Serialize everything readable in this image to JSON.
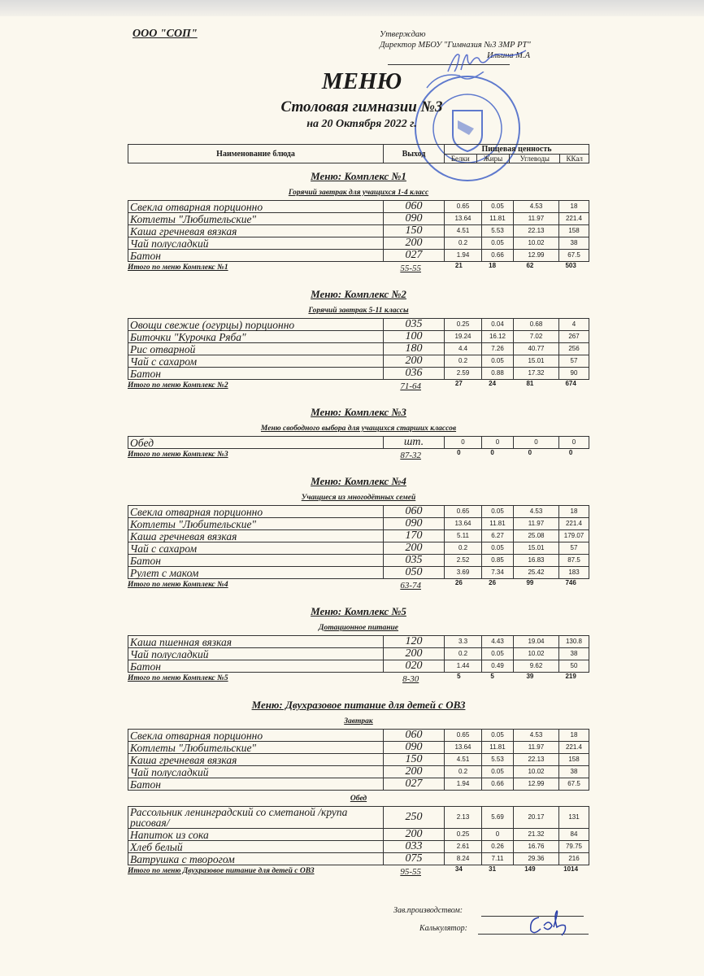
{
  "header": {
    "org": "ООО \"СОП\"",
    "approve_label": "Утверждаю",
    "director": "Директор МБОУ \"Гимназия №3 ЗМР РТ\"",
    "director_name": "Ильина М.А",
    "title": "МЕНЮ",
    "subtitle": "Столовая гимназии №3",
    "date": "на 20 Октября 2022 г."
  },
  "stamp": {
    "text": "МБОУ Гимназия №3 Зеленодольского муниципального района Республики Татарстан",
    "color": "#2a4fc2"
  },
  "columns": {
    "name": "Наименование блюда",
    "output": "Выход",
    "nutrition": "Пищевая ценность",
    "protein": "Белки",
    "fat": "Жиры",
    "carbs": "Углеводы",
    "kcal": "ККал"
  },
  "sections": [
    {
      "title": "Меню: Комплекс №1",
      "groups": [
        {
          "subtitle": "Горячий завтрак для учащихся 1-4 класс",
          "rows": [
            [
              "Свекла отварная порционно",
              "060",
              "0.65",
              "0.05",
              "4.53",
              "18"
            ],
            [
              "Котлеты  \"Любительские\"",
              "090",
              "13.64",
              "11.81",
              "11.97",
              "221.4"
            ],
            [
              "Каша гречневая вязкая",
              "150",
              "4.51",
              "5.53",
              "22.13",
              "158"
            ],
            [
              "Чай полусладкий",
              "200",
              "0.2",
              "0.05",
              "10.02",
              "38"
            ],
            [
              "Батон",
              "027",
              "1.94",
              "0.66",
              "12.99",
              "67.5"
            ]
          ]
        }
      ],
      "total": [
        "Итого по меню Комплекс №1",
        "55-55",
        "21",
        "18",
        "62",
        "503"
      ]
    },
    {
      "title": "Меню: Комплекс №2",
      "groups": [
        {
          "subtitle": "Горячий завтрак 5-11 классы",
          "rows": [
            [
              "Овощи свежие (огурцы) порционно",
              "035",
              "0.25",
              "0.04",
              "0.68",
              "4"
            ],
            [
              "Биточки \"Курочка Ряба\"",
              "100",
              "19.24",
              "16.12",
              "7.02",
              "267"
            ],
            [
              "Рис отварной",
              "180",
              "4.4",
              "7.26",
              "40.77",
              "256"
            ],
            [
              "Чай с сахаром",
              "200",
              "0.2",
              "0.05",
              "15.01",
              "57"
            ],
            [
              "Батон",
              "036",
              "2.59",
              "0.88",
              "17.32",
              "90"
            ]
          ]
        }
      ],
      "total": [
        "Итого по меню Комплекс №2",
        "71-64",
        "27",
        "24",
        "81",
        "674"
      ]
    },
    {
      "title": "Меню: Комплекс №3",
      "groups": [
        {
          "subtitle": "Меню свободного выбора для учащихся старших классов",
          "rows": [
            [
              "Обед",
              "шт.",
              "0",
              "0",
              "0",
              "0"
            ]
          ]
        }
      ],
      "total": [
        "Итого по меню Комплекс №3",
        "87-32",
        "0",
        "0",
        "0",
        "0"
      ]
    },
    {
      "title": "Меню: Комплекс №4",
      "groups": [
        {
          "subtitle": "Учащиеся из многодётных семей",
          "rows": [
            [
              "Свекла отварная порционно",
              "060",
              "0.65",
              "0.05",
              "4.53",
              "18"
            ],
            [
              "Котлеты  \"Любительские\"",
              "090",
              "13.64",
              "11.81",
              "11.97",
              "221.4"
            ],
            [
              "Каша гречневая вязкая",
              "170",
              "5.11",
              "6.27",
              "25.08",
              "179.07"
            ],
            [
              "Чай с сахаром",
              "200",
              "0.2",
              "0.05",
              "15.01",
              "57"
            ],
            [
              "Батон",
              "035",
              "2.52",
              "0.85",
              "16.83",
              "87.5"
            ],
            [
              "Рулет с маком",
              "050",
              "3.69",
              "7.34",
              "25.42",
              "183"
            ]
          ]
        }
      ],
      "total": [
        "Итого по меню Комплекс №4",
        "63-74",
        "26",
        "26",
        "99",
        "746"
      ]
    },
    {
      "title": "Меню: Комплекс №5",
      "groups": [
        {
          "subtitle": "Дотационное питание",
          "rows": [
            [
              "Каша пшенная вязкая",
              "120",
              "3.3",
              "4.43",
              "19.04",
              "130.8"
            ],
            [
              "Чай полусладкий",
              "200",
              "0.2",
              "0.05",
              "10.02",
              "38"
            ],
            [
              "Батон",
              "020",
              "1.44",
              "0.49",
              "9.62",
              "50"
            ]
          ]
        }
      ],
      "total": [
        "Итого по меню Комплекс №5",
        "8-30",
        "5",
        "5",
        "39",
        "219"
      ]
    },
    {
      "title": "Меню: Двухразовое питание для детей с ОВЗ",
      "groups": [
        {
          "subtitle": "Завтрак",
          "rows": [
            [
              "Свекла отварная порционно",
              "060",
              "0.65",
              "0.05",
              "4.53",
              "18"
            ],
            [
              "Котлеты  \"Любительские\"",
              "090",
              "13.64",
              "11.81",
              "11.97",
              "221.4"
            ],
            [
              "Каша гречневая вязкая",
              "150",
              "4.51",
              "5.53",
              "22.13",
              "158"
            ],
            [
              "Чай полусладкий",
              "200",
              "0.2",
              "0.05",
              "10.02",
              "38"
            ],
            [
              "Батон",
              "027",
              "1.94",
              "0.66",
              "12.99",
              "67.5"
            ]
          ]
        },
        {
          "subtitle": "Обед",
          "rows": [
            [
              "Рассольник ленинградский со сметаной /крупа рисовая/",
              "250",
              "2.13",
              "5.69",
              "20.17",
              "131"
            ],
            [
              "Напиток  из сока",
              "200",
              "0.25",
              "0",
              "21.32",
              "84"
            ],
            [
              "Хлеб  белый",
              "033",
              "2.61",
              "0.26",
              "16.76",
              "79.75"
            ],
            [
              "Ватрушка с творогом",
              "075",
              "8.24",
              "7.11",
              "29.36",
              "216"
            ]
          ]
        }
      ],
      "total": [
        "Итого по меню Двухразовое питание для детей с ОВЗ",
        "95-55",
        "34",
        "31",
        "149",
        "1014"
      ]
    }
  ],
  "footer": {
    "production_label": "Зав.производством:",
    "calculator_label": "Калькулятор:"
  }
}
